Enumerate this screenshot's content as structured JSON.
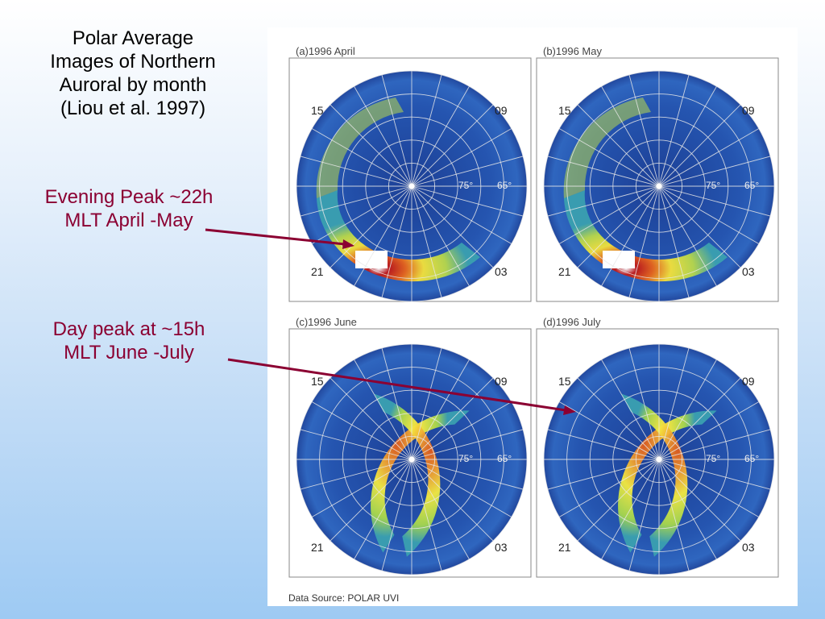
{
  "title_lines": [
    "Polar Average",
    "Images of Northern",
    "Auroral by month",
    "(Liou et al. 1997)"
  ],
  "evening_lines": [
    "Evening Peak ~22h",
    "MLT April -May"
  ],
  "day_lines": [
    "Day peak at ~15h",
    "MLT June -July"
  ],
  "panels": [
    {
      "label": "(a)1996 April",
      "peak": "evening"
    },
    {
      "label": "(b)1996 May",
      "peak": "evening"
    },
    {
      "label": "(c)1996 June",
      "peak": "day"
    },
    {
      "label": "(d)1996 July",
      "peak": "day"
    }
  ],
  "mlt_labels": {
    "top_left": "15",
    "top_right": "09",
    "bottom_left": "21",
    "bottom_right": "03"
  },
  "lat_labels": {
    "inner": "75°",
    "outer": "65°"
  },
  "data_source": "Data Source: POLAR UVI",
  "colors": {
    "annotation": "#8b0032",
    "polar_base": "#1f4fa8",
    "arrow": "#8b0032"
  }
}
